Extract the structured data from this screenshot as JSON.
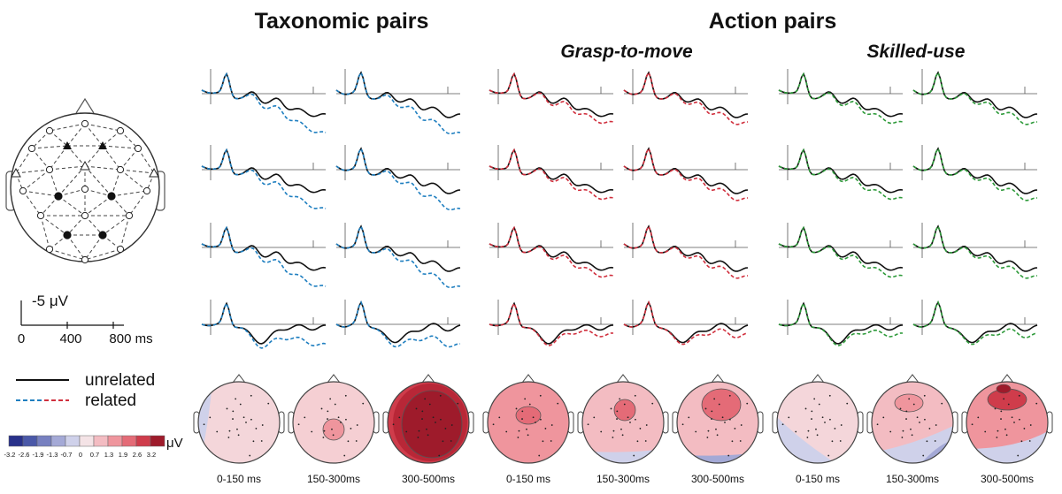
{
  "figure": {
    "header_left": "Taxonomic pairs",
    "header_right": "Action pairs",
    "sub_grasp": "Grasp-to-move",
    "sub_skilled": "Skilled-use",
    "scale_amp": "-5 μV",
    "scale_ticks": [
      "0",
      "400",
      "800 ms"
    ],
    "legend_unrelated": "unrelated",
    "legend_related": "related",
    "colorbar_unit": "μV",
    "colorbar_ticks": [
      "-3.2",
      "-2.6",
      "-1.9",
      "-1.3",
      "-0.7",
      "0",
      "0.7",
      "1.3",
      "1.9",
      "2.6",
      "3.2"
    ],
    "colorbar_colors": [
      "#28318a",
      "#4a58a8",
      "#7780c0",
      "#a4a9d6",
      "#cfd1ea",
      "#f4e3e6",
      "#f3bcc2",
      "#ef959d",
      "#e46b77",
      "#cf3c4b",
      "#9e1b2b"
    ],
    "time_windows": [
      "0-150 ms",
      "150-300ms",
      "300-500ms"
    ],
    "time_windows_grasp": [
      "0-150 ms",
      "150-300ms",
      "300-500ms"
    ],
    "time_windows_skilled": [
      "0-150 ms",
      "150-300ms",
      "300-500ms"
    ],
    "colors": {
      "unrelated": "#111111",
      "taxonomic_related": "#1f7fc0",
      "grasp_related": "#d02f3d",
      "skilled_related": "#2e9a3a"
    }
  }
}
